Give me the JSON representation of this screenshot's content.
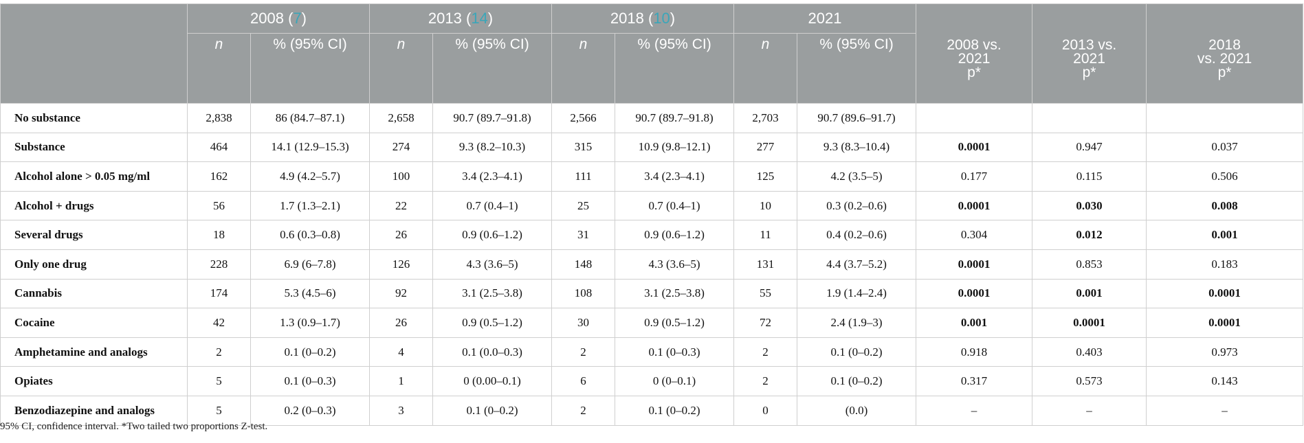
{
  "header": {
    "groups": [
      {
        "year": "2008",
        "ref_open": " (",
        "ref": "7",
        "ref_close": ")"
      },
      {
        "year": "2013",
        "ref_open": " (",
        "ref": "14",
        "ref_close": ")"
      },
      {
        "year": "2018",
        "ref_open": " (",
        "ref": "10",
        "ref_close": ")"
      },
      {
        "year": "2021",
        "ref_open": "",
        "ref": "",
        "ref_close": ""
      }
    ],
    "n_label": "n",
    "ci_label": "% (95% CI)",
    "p_cols": [
      {
        "line1": "2008 vs.",
        "line2": "2021",
        "line3": "p*"
      },
      {
        "line1": "2013 vs.",
        "line2": "2021",
        "line3": "p*"
      },
      {
        "line1": "2018",
        "line2": "vs. 2021",
        "line3": "p*"
      }
    ]
  },
  "rows": [
    {
      "label": "No substance",
      "cells": [
        "2,838",
        "86 (84.7–87.1)",
        "2,658",
        "90.7 (89.7–91.8)",
        "2,566",
        "90.7 (89.7–91.8)",
        "2,703",
        "90.7 (89.6–91.7)"
      ],
      "p": [
        "",
        "",
        ""
      ],
      "bold": [
        false,
        false,
        false
      ]
    },
    {
      "label": "Substance",
      "cells": [
        "464",
        "14.1 (12.9–15.3)",
        "274",
        "9.3 (8.2–10.3)",
        "315",
        "10.9 (9.8–12.1)",
        "277",
        "9.3 (8.3–10.4)"
      ],
      "p": [
        "0.0001",
        "0.947",
        "0.037"
      ],
      "bold": [
        true,
        false,
        false
      ]
    },
    {
      "label": "Alcohol alone > 0.05 mg/ml",
      "cells": [
        "162",
        "4.9 (4.2–5.7)",
        "100",
        "3.4 (2.3–4.1)",
        "111",
        "3.4 (2.3–4.1)",
        "125",
        "4.2 (3.5–5)"
      ],
      "p": [
        "0.177",
        "0.115",
        "0.506"
      ],
      "bold": [
        false,
        false,
        false
      ]
    },
    {
      "label": "Alcohol + drugs",
      "cells": [
        "56",
        "1.7 (1.3–2.1)",
        "22",
        "0.7 (0.4–1)",
        "25",
        "0.7 (0.4–1)",
        "10",
        "0.3 (0.2–0.6)"
      ],
      "p": [
        "0.0001",
        "0.030",
        "0.008"
      ],
      "bold": [
        true,
        true,
        true
      ]
    },
    {
      "label": "Several drugs",
      "cells": [
        "18",
        "0.6 (0.3–0.8)",
        "26",
        "0.9 (0.6–1.2)",
        "31",
        "0.9 (0.6–1.2)",
        "11",
        "0.4 (0.2–0.6)"
      ],
      "p": [
        "0.304",
        "0.012",
        "0.001"
      ],
      "bold": [
        false,
        true,
        true
      ]
    },
    {
      "label": "Only one drug",
      "cells": [
        "228",
        "6.9 (6–7.8)",
        "126",
        "4.3 (3.6–5)",
        "148",
        "4.3 (3.6–5)",
        "131",
        "4.4 (3.7–5.2)"
      ],
      "p": [
        "0.0001",
        "0.853",
        "0.183"
      ],
      "bold": [
        true,
        false,
        false
      ]
    },
    {
      "label": "Cannabis",
      "cells": [
        "174",
        "5.3 (4.5–6)",
        "92",
        "3.1 (2.5–3.8)",
        "108",
        "3.1 (2.5–3.8)",
        "55",
        "1.9 (1.4–2.4)"
      ],
      "p": [
        "0.0001",
        "0.001",
        "0.0001"
      ],
      "bold": [
        true,
        true,
        true
      ]
    },
    {
      "label": "Cocaine",
      "cells": [
        "42",
        "1.3 (0.9–1.7)",
        "26",
        "0.9 (0.5–1.2)",
        "30",
        "0.9 (0.5–1.2)",
        "72",
        "2.4 (1.9–3)"
      ],
      "p": [
        "0.001",
        "0.0001",
        "0.0001"
      ],
      "bold": [
        true,
        true,
        true
      ]
    },
    {
      "label": "Amphetamine and analogs",
      "cells": [
        "2",
        "0.1 (0–0.2)",
        "4",
        "0.1 (0.0–0.3)",
        "2",
        "0.1 (0–0.3)",
        "2",
        "0.1 (0–0.2)"
      ],
      "p": [
        "0.918",
        "0.403",
        "0.973"
      ],
      "bold": [
        false,
        false,
        false
      ]
    },
    {
      "label": "Opiates",
      "cells": [
        "5",
        "0.1 (0–0.3)",
        "1",
        "0 (0.00–0.1)",
        "6",
        "0 (0–0.1)",
        "2",
        "0.1 (0–0.2)"
      ],
      "p": [
        "0.317",
        "0.573",
        "0.143"
      ],
      "bold": [
        false,
        false,
        false
      ]
    },
    {
      "label": "Benzodiazepine and analogs",
      "cells": [
        "5",
        "0.2 (0–0.3)",
        "3",
        "0.1 (0–0.2)",
        "2",
        "0.1 (0–0.2)",
        "0",
        "(0.0)"
      ],
      "p": [
        "–",
        "–",
        "–"
      ],
      "bold": [
        false,
        false,
        false
      ]
    }
  ],
  "footnote": "95% CI, confidence interval. *Two tailed two proportions Z-test."
}
